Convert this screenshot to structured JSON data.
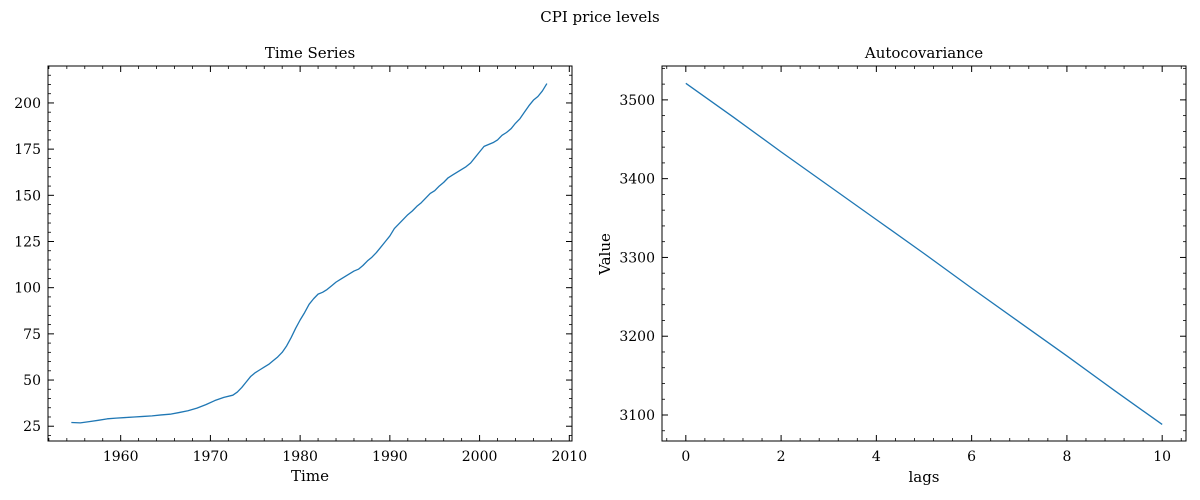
{
  "figure": {
    "suptitle": "CPI price levels"
  },
  "colors": {
    "line": "#1f77b4",
    "axes": "#000000",
    "background": "#ffffff"
  },
  "chart_data": [
    {
      "type": "line",
      "title": "Time Series",
      "xlabel": "Time",
      "ylabel": "",
      "xlim": [
        1951.9,
        2010.3
      ],
      "ylim": [
        17,
        220
      ],
      "xticks": [
        1960,
        1970,
        1980,
        1990,
        2000,
        2010
      ],
      "xtick_labels": [
        "1960",
        "1970",
        "1980",
        "1990",
        "2000",
        "2010"
      ],
      "yticks": [
        25,
        50,
        75,
        100,
        125,
        150,
        175,
        200
      ],
      "ytick_labels": [
        "25",
        "50",
        "75",
        "100",
        "125",
        "150",
        "175",
        "200"
      ],
      "grid": false,
      "series": [
        {
          "x": [
            1954.5,
            1955.5,
            1956.5,
            1957.5,
            1958.5,
            1959.5,
            1960.5,
            1961.5,
            1962.5,
            1963.5,
            1964.5,
            1965.5,
            1966.5,
            1967.5,
            1968.5,
            1969.5,
            1970.5,
            1971.5,
            1972.5,
            1973.0,
            1973.5,
            1974.0,
            1974.5,
            1975.0,
            1975.5,
            1976.0,
            1976.5,
            1977.0,
            1977.5,
            1978.0,
            1978.5,
            1979.0,
            1979.5,
            1980.0,
            1980.5,
            1981.0,
            1981.5,
            1982.0,
            1982.5,
            1983.0,
            1983.5,
            1984.0,
            1984.5,
            1985.0,
            1985.5,
            1986.0,
            1986.5,
            1987.0,
            1987.5,
            1988.0,
            1988.5,
            1989.0,
            1989.5,
            1990.0,
            1990.5,
            1991.0,
            1991.5,
            1992.0,
            1992.5,
            1993.0,
            1993.5,
            1994.0,
            1994.5,
            1995.0,
            1995.5,
            1996.0,
            1996.5,
            1997.0,
            1997.5,
            1998.0,
            1998.5,
            1999.0,
            1999.5,
            2000.0,
            2000.5,
            2001.0,
            2001.5,
            2002.0,
            2002.5,
            2003.0,
            2003.5,
            2004.0,
            2004.5,
            2005.0,
            2005.5,
            2006.0,
            2006.5,
            2007.0,
            2007.5
          ],
          "values": [
            27,
            26.8,
            27.5,
            28.2,
            29,
            29.4,
            29.7,
            30,
            30.3,
            30.6,
            31.1,
            31.5,
            32.4,
            33.4,
            34.8,
            36.7,
            38.9,
            40.6,
            41.8,
            43.5,
            46,
            49,
            52,
            54,
            55.5,
            57,
            58.5,
            60.5,
            62.5,
            65,
            68.5,
            73,
            78,
            82.5,
            86.5,
            91,
            94,
            96.5,
            97.5,
            99,
            101,
            103,
            104.5,
            106,
            107.5,
            109,
            110,
            112,
            114.5,
            116.5,
            119,
            122,
            125,
            128,
            132,
            134.5,
            137,
            139.5,
            141.5,
            144,
            146,
            148.5,
            151,
            152.5,
            155,
            157,
            159.5,
            161,
            162.5,
            164,
            165.5,
            167.5,
            170.5,
            173.5,
            176.5,
            177.5,
            178.5,
            180,
            182.5,
            184,
            186,
            189,
            191.5,
            195,
            198.5,
            201.5,
            203.5,
            206.5,
            210.5
          ]
        }
      ]
    },
    {
      "type": "line",
      "title": "Autocovariance",
      "xlabel": "lags",
      "ylabel": "Value",
      "xlim": [
        -0.5,
        10.5
      ],
      "ylim": [
        3067,
        3543
      ],
      "xticks": [
        0,
        2,
        4,
        6,
        8,
        10
      ],
      "xtick_labels": [
        "0",
        "2",
        "4",
        "6",
        "8",
        "10"
      ],
      "yticks": [
        3100,
        3200,
        3300,
        3400,
        3500
      ],
      "ytick_labels": [
        "3100",
        "3200",
        "3300",
        "3400",
        "3500"
      ],
      "grid": false,
      "series": [
        {
          "x": [
            0,
            1,
            2,
            3,
            4,
            5,
            6,
            7,
            8,
            9,
            10
          ],
          "values": [
            3521,
            3478,
            3434,
            3391,
            3348,
            3305,
            3261,
            3218,
            3175,
            3131,
            3088
          ]
        }
      ]
    }
  ]
}
